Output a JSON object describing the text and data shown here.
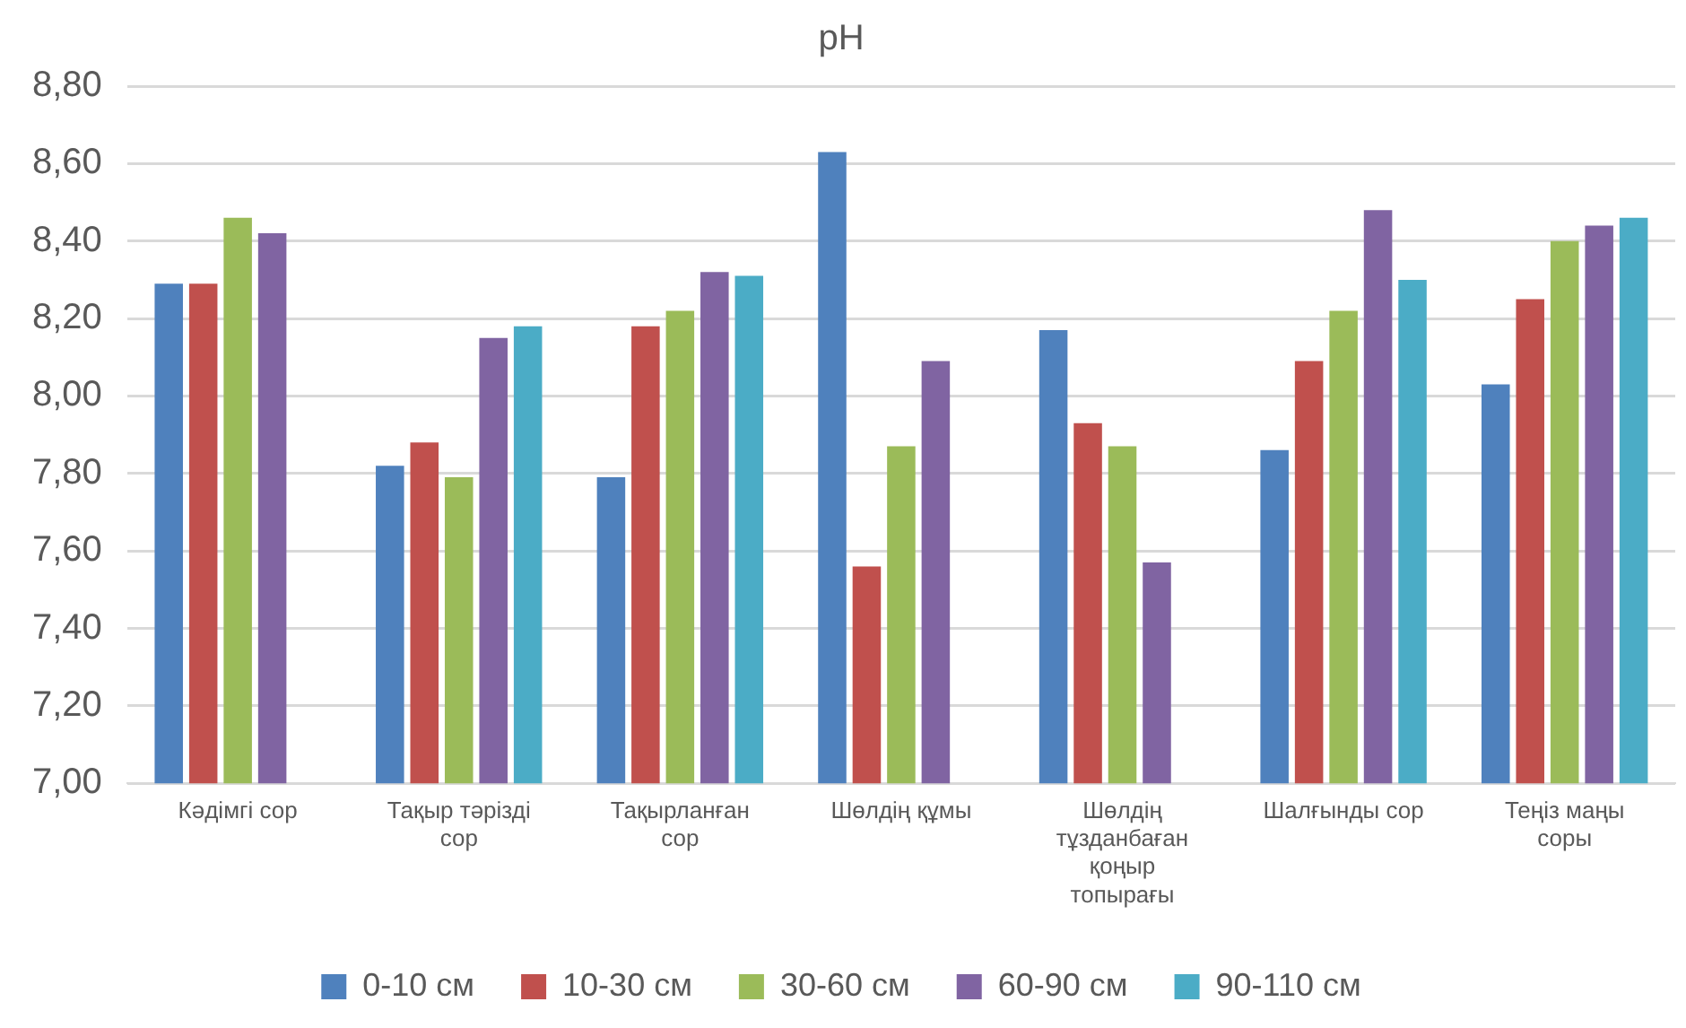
{
  "chart_data": {
    "type": "bar",
    "title": "pH",
    "categories": [
      "Кәдімгі сор",
      "Тақыр тәрізді сор",
      "Тақырланған сор",
      "Шөлдің құмы",
      "Шөлдің тұзданбаған қоңыр топырағы",
      "Шалғынды сор",
      "Теңіз маңы соры"
    ],
    "series": [
      {
        "name": "0-10 см",
        "color": "#4f81bd",
        "values": [
          8.29,
          7.82,
          7.79,
          8.63,
          8.17,
          7.86,
          8.03
        ]
      },
      {
        "name": "10-30 см",
        "color": "#c0504d",
        "values": [
          8.29,
          7.88,
          8.18,
          7.56,
          7.93,
          8.09,
          8.25
        ]
      },
      {
        "name": "30-60 см",
        "color": "#9bbb59",
        "values": [
          8.46,
          7.79,
          8.22,
          7.87,
          7.87,
          8.22,
          8.4
        ]
      },
      {
        "name": "60-90 см",
        "color": "#8064a2",
        "values": [
          8.42,
          8.15,
          8.32,
          8.09,
          7.57,
          8.48,
          8.44
        ]
      },
      {
        "name": "90-110 см",
        "color": "#4bacc6",
        "values": [
          null,
          8.18,
          8.31,
          null,
          null,
          8.3,
          8.46
        ]
      }
    ],
    "ylim": [
      7.0,
      8.8
    ],
    "yticks": [
      {
        "value": 7.0,
        "label": "7,00"
      },
      {
        "value": 7.2,
        "label": "7,20"
      },
      {
        "value": 7.4,
        "label": "7,40"
      },
      {
        "value": 7.6,
        "label": "7,60"
      },
      {
        "value": 7.8,
        "label": "7,80"
      },
      {
        "value": 8.0,
        "label": "8,00"
      },
      {
        "value": 8.2,
        "label": "8,20"
      },
      {
        "value": 8.4,
        "label": "8,40"
      },
      {
        "value": 8.6,
        "label": "8,60"
      },
      {
        "value": 8.8,
        "label": "8,80"
      }
    ],
    "grid": "y",
    "legend": "bottom"
  }
}
